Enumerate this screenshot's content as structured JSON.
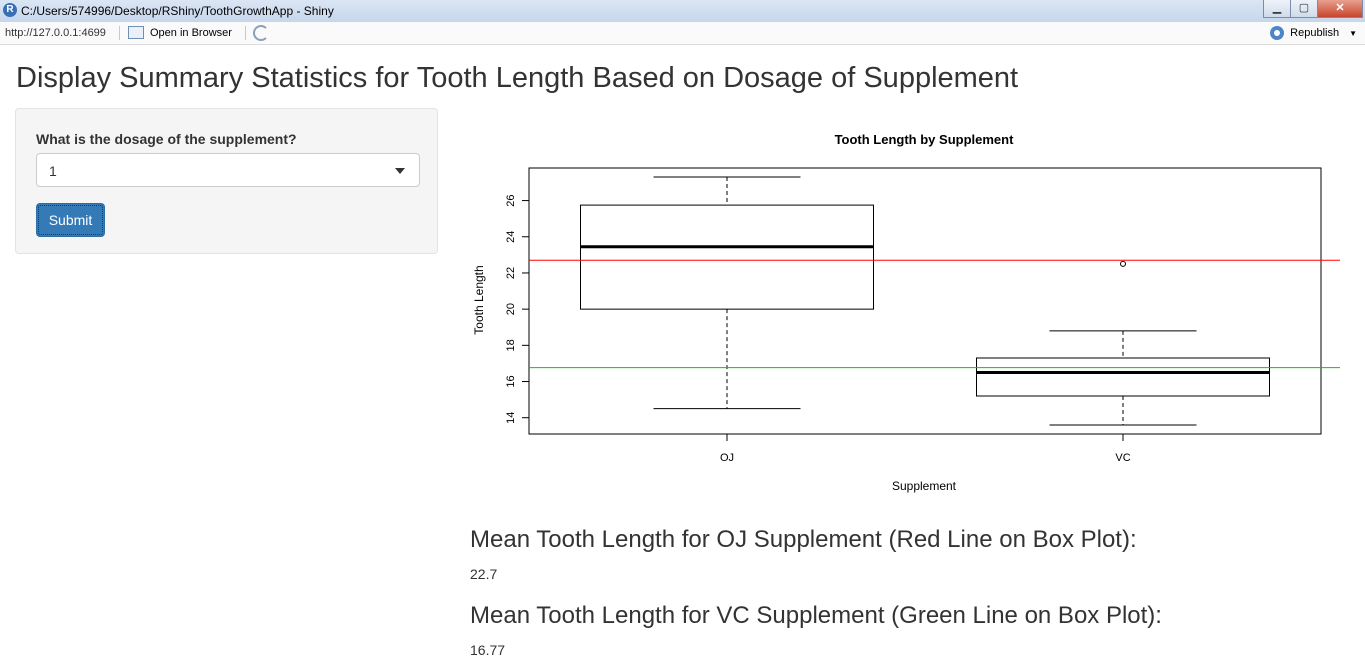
{
  "window": {
    "title": "C:/Users/574996/Desktop/RShiny/ToothGrowthApp - Shiny",
    "app_icon_glyph": "R"
  },
  "addressbar": {
    "url": "http://127.0.0.1:4699",
    "open_in_browser": "Open in Browser",
    "republish": "Republish"
  },
  "page": {
    "title": "Display Summary Statistics for Tooth Length Based on Dosage of Supplement",
    "sidebar": {
      "dose_label": "What is the dosage of the supplement?",
      "dose_value": "1",
      "submit_label": "Submit"
    },
    "stats": [
      {
        "heading": "Mean Tooth Length for OJ Supplement (Red Line on Box Plot):",
        "value": "22.7"
      },
      {
        "heading": "Mean Tooth Length for VC Supplement (Green Line on Box Plot):",
        "value": "16.77"
      }
    ]
  },
  "chart_data": {
    "type": "box",
    "title": "Tooth Length by Supplement",
    "xlabel": "Supplement",
    "ylabel": "Tooth Length",
    "ylim": [
      13.1,
      27.8
    ],
    "yticks": [
      14,
      16,
      18,
      20,
      22,
      24,
      26
    ],
    "categories": [
      "OJ",
      "VC"
    ],
    "boxes": [
      {
        "name": "OJ",
        "min": 14.5,
        "q1": 20.0,
        "median": 23.45,
        "q3": 25.75,
        "max": 27.3,
        "outliers": []
      },
      {
        "name": "VC",
        "min": 13.6,
        "q1": 15.2,
        "median": 16.5,
        "q3": 17.3,
        "max": 18.8,
        "outliers": [
          22.5
        ]
      }
    ],
    "hlines": [
      {
        "value": 22.7,
        "color": "#ff0000"
      },
      {
        "value": 16.77,
        "color": "#00cd00"
      }
    ]
  }
}
